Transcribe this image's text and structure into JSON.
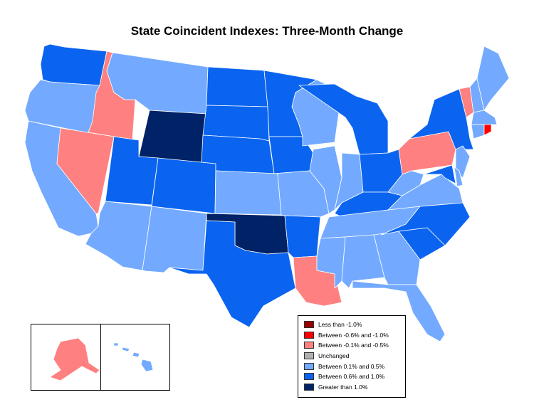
{
  "title": "State Coincident Indexes: Three-Month Change",
  "colors": {
    "less_than_neg1": "#990000",
    "neg06_neg1": "#ff0000",
    "neg01_neg05": "#ff8080",
    "unchanged": "#b0b0b0",
    "pos01_05": "#73aaff",
    "pos06_1": "#0a64f0",
    "gt1": "#002266"
  },
  "legend": [
    {
      "label": "Less than -1.0%",
      "color_key": "less_than_neg1"
    },
    {
      "label": "Between -0.6% and -1.0%",
      "color_key": "neg06_neg1"
    },
    {
      "label": "Between -0.1% and -0.5%",
      "color_key": "neg01_neg05"
    },
    {
      "label": "Unchanged",
      "color_key": "unchanged"
    },
    {
      "label": "Between 0.1% and 0.5%",
      "color_key": "pos01_05"
    },
    {
      "label": "Between 0.6% and 1.0%",
      "color_key": "pos06_1"
    },
    {
      "label": "Greater than 1.0%",
      "color_key": "gt1"
    }
  ],
  "states": {
    "WA": "pos06_1",
    "OR": "pos01_05",
    "CA": "pos01_05",
    "ID": "neg01_neg05",
    "NV": "neg01_neg05",
    "MT": "pos01_05",
    "WY": "gt1",
    "UT": "pos06_1",
    "CO": "pos06_1",
    "AZ": "pos01_05",
    "NM": "pos01_05",
    "ND": "pos06_1",
    "SD": "pos06_1",
    "NE": "pos06_1",
    "KS": "pos01_05",
    "OK": "gt1",
    "TX": "pos06_1",
    "MN": "pos06_1",
    "IA": "pos06_1",
    "MO": "pos01_05",
    "AR": "pos06_1",
    "LA": "neg01_neg05",
    "WI": "pos01_05",
    "IL": "pos01_05",
    "MI": "pos06_1",
    "IN": "pos01_05",
    "OH": "pos06_1",
    "KY": "pos06_1",
    "TN": "pos01_05",
    "MS": "pos01_05",
    "AL": "pos01_05",
    "GA": "pos01_05",
    "FL": "pos01_05",
    "SC": "pos06_1",
    "NC": "pos06_1",
    "VA": "pos01_05",
    "WV": "pos01_05",
    "PA": "neg01_neg05",
    "NY": "pos06_1",
    "VT": "neg01_neg05",
    "NH": "pos01_05",
    "ME": "pos01_05",
    "MA": "pos01_05",
    "RI": "neg06_neg1",
    "CT": "pos01_05",
    "NJ": "pos01_05",
    "DE": "pos01_05",
    "MD": "pos06_1",
    "AK": "neg01_neg05",
    "HI": "pos01_05"
  }
}
